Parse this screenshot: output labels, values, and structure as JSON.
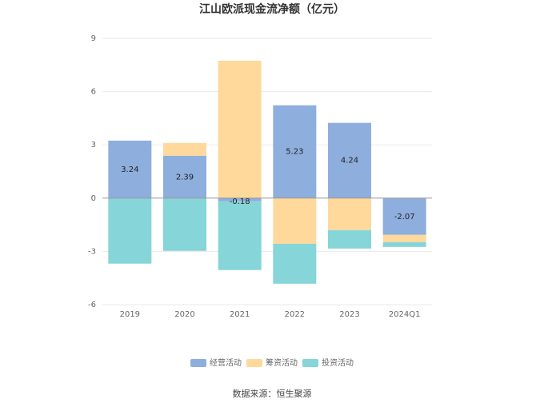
{
  "chart_data": {
    "type": "stacked-bar",
    "title": "江山欧派现金流净额（亿元）",
    "categories": [
      "2019",
      "2020",
      "2021",
      "2022",
      "2023",
      "2024Q1"
    ],
    "series": [
      {
        "name": "经营活动",
        "color": "#8eaedd",
        "values": [
          3.24,
          2.39,
          -0.18,
          5.23,
          4.24,
          -2.07
        ],
        "show_labels": true
      },
      {
        "name": "筹资活动",
        "color": "#fed99b",
        "values": [
          0,
          0.72,
          7.74,
          -2.57,
          -1.8,
          -0.41
        ]
      },
      {
        "name": "投资活动",
        "color": "#86d5d8",
        "values": [
          -3.69,
          -2.97,
          -3.87,
          -2.25,
          -1.04,
          -0.27
        ]
      }
    ],
    "ylim": [
      -6,
      9
    ],
    "yticks": [
      -6,
      -3,
      0,
      3,
      6,
      9
    ],
    "grid": true,
    "source": "数据来源：恒生聚源"
  }
}
